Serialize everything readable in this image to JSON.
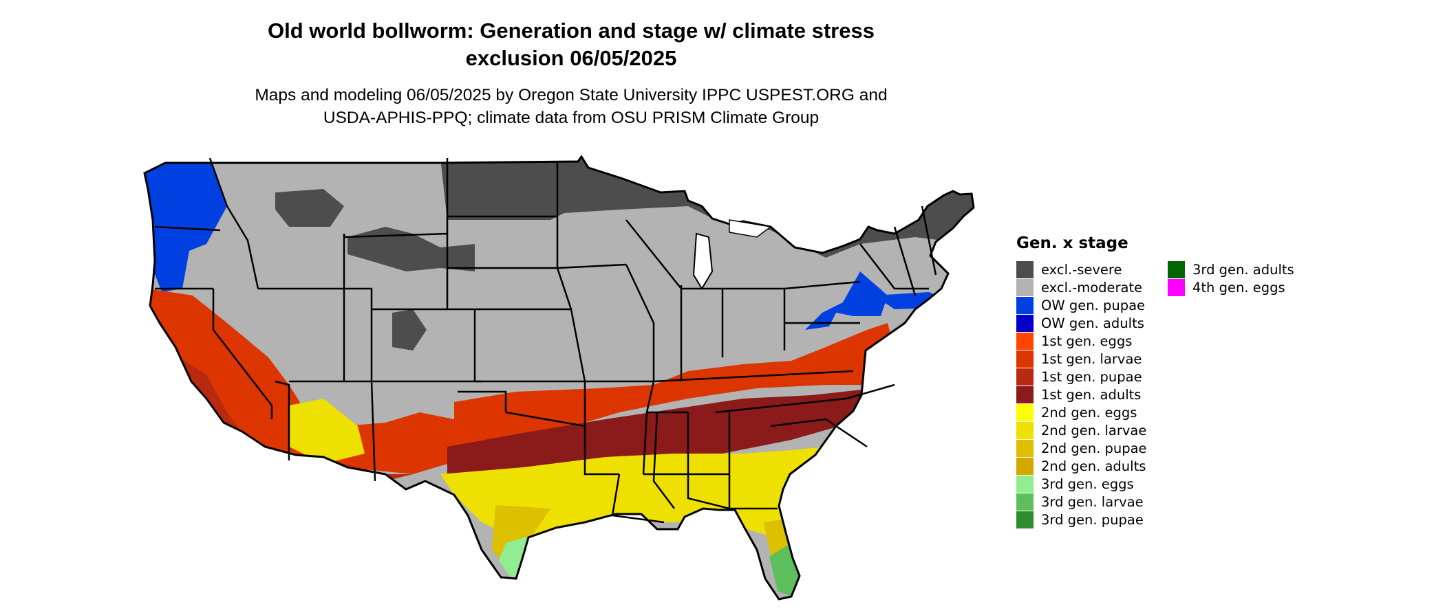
{
  "title_line1": "Old world bollworm: Generation and stage w/ climate stress",
  "title_line2": "exclusion 06/05/2025",
  "subtitle_line1": "Maps and modeling 06/05/2025 by Oregon State University IPPC USPEST.ORG and",
  "subtitle_line2": "USDA-APHIS-PPQ; climate data from OSU PRISM Climate Group",
  "legend": {
    "title": "Gen. x stage",
    "items": [
      {
        "label": "excl.-severe",
        "color": "#4d4d4d"
      },
      {
        "label": "excl.-moderate",
        "color": "#b3b3b3"
      },
      {
        "label": "OW gen. pupae",
        "color": "#0040e0"
      },
      {
        "label": "OW gen. adults",
        "color": "#0000c8"
      },
      {
        "label": "1st gen. eggs",
        "color": "#ff4500"
      },
      {
        "label": "1st gen. larvae",
        "color": "#dc3500"
      },
      {
        "label": "1st gen. pupae",
        "color": "#b82a10"
      },
      {
        "label": "1st gen. adults",
        "color": "#8b1a1a"
      },
      {
        "label": "2nd gen. eggs",
        "color": "#ffff00"
      },
      {
        "label": "2nd gen. larvae",
        "color": "#eee000"
      },
      {
        "label": "2nd gen. pupae",
        "color": "#ddc000"
      },
      {
        "label": "2nd gen. adults",
        "color": "#d4a800"
      },
      {
        "label": "3rd gen. eggs",
        "color": "#90ee90"
      },
      {
        "label": "3rd gen. larvae",
        "color": "#5cbf5c"
      },
      {
        "label": "3rd gen. pupae",
        "color": "#2e8b2e"
      },
      {
        "label": "3rd gen. adults",
        "color": "#006400"
      },
      {
        "label": "4th gen. eggs",
        "color": "#ff00ff"
      }
    ]
  }
}
